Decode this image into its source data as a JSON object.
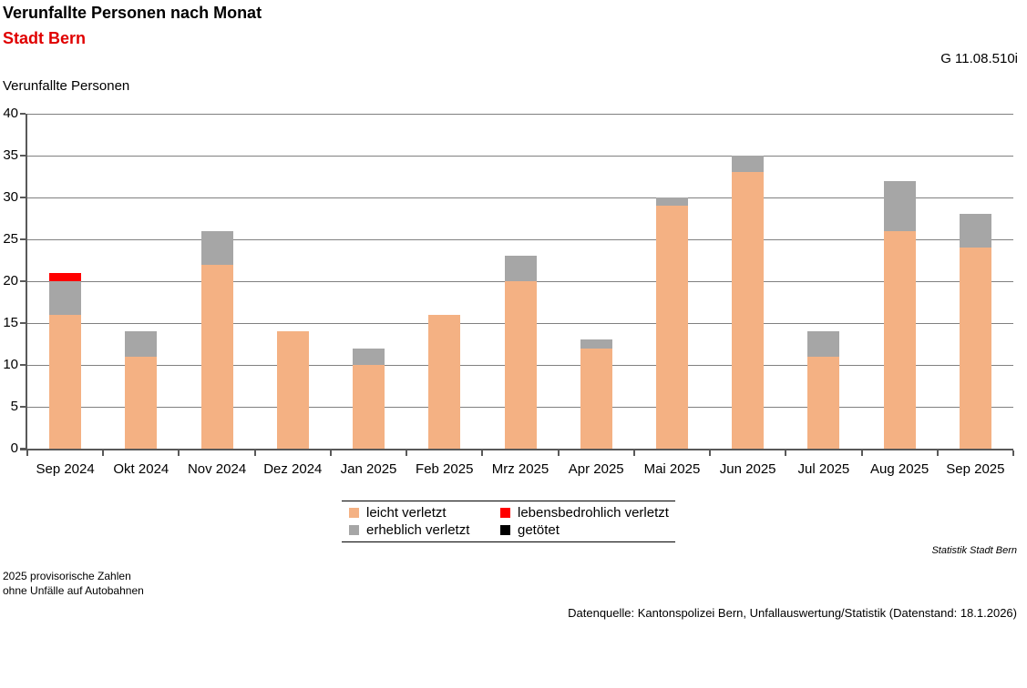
{
  "header": {
    "title": "Verunfallte Personen nach Monat",
    "subtitle": "Stadt Bern",
    "chart_id": "G 11.08.510i"
  },
  "chart_data": {
    "type": "bar",
    "stacked": true,
    "title": "Verunfallte Personen nach Monat",
    "subtitle": "Stadt Bern",
    "ylabel": "Verunfallte Personen",
    "xlabel": "",
    "ylim": [
      0,
      40
    ],
    "yticks": [
      0,
      5,
      10,
      15,
      20,
      25,
      30,
      35,
      40
    ],
    "grid": true,
    "legend_position": "bottom",
    "categories": [
      "Sep 2024",
      "Okt 2024",
      "Nov 2024",
      "Dez 2024",
      "Jan 2025",
      "Feb 2025",
      "Mrz 2025",
      "Apr 2025",
      "Mai 2025",
      "Jun 2025",
      "Jul 2025",
      "Aug 2025",
      "Sep 2025"
    ],
    "series": [
      {
        "name": "leicht verletzt",
        "color": "#F4B183",
        "values": [
          16,
          11,
          22,
          14,
          10,
          16,
          20,
          12,
          29,
          33,
          11,
          26,
          24
        ]
      },
      {
        "name": "erheblich verletzt",
        "color": "#A6A6A6",
        "values": [
          4,
          3,
          4,
          0,
          2,
          0,
          3,
          1,
          1,
          2,
          3,
          6,
          4
        ]
      },
      {
        "name": "lebensbedrohlich verletzt",
        "color": "#FF0000",
        "values": [
          1,
          0,
          0,
          0,
          0,
          0,
          0,
          0,
          0,
          0,
          0,
          0,
          0
        ]
      },
      {
        "name": "getötet",
        "color": "#000000",
        "values": [
          0,
          0,
          0,
          0,
          0,
          0,
          0,
          0,
          0,
          0,
          0,
          0,
          0
        ]
      }
    ],
    "totals": [
      21,
      14,
      26,
      14,
      12,
      16,
      23,
      13,
      30,
      35,
      14,
      32,
      28
    ]
  },
  "legend": {
    "items": [
      {
        "label": "leicht verletzt",
        "color": "#F4B183"
      },
      {
        "label": "lebensbedrohlich verletzt",
        "color": "#FF0000"
      },
      {
        "label": "erheblich verletzt",
        "color": "#A6A6A6"
      },
      {
        "label": "getötet",
        "color": "#000000"
      }
    ]
  },
  "footer": {
    "attribution": "Statistik Stadt Bern",
    "footnote_line1": "2025 provisorische Zahlen",
    "footnote_line2": "ohne Unfälle auf Autobahnen",
    "source": "Datenquelle: Kantonspolizei Bern, Unfallauswertung/Statistik (Datenstand: 18.1.2026)"
  },
  "colors": {
    "subtitle_red": "#E00000",
    "gridline": "#808080",
    "axis": "#595959"
  }
}
